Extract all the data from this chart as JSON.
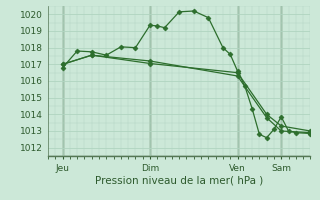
{
  "background_color": "#cce8d8",
  "grid_color": "#b0d4c0",
  "line_color": "#2d6e2d",
  "marker_color": "#2d6e2d",
  "xlabel": "Pression niveau de la mer( hPa )",
  "ylim": [
    1011.5,
    1020.5
  ],
  "yticks": [
    1012,
    1013,
    1014,
    1015,
    1016,
    1017,
    1018,
    1019,
    1020
  ],
  "x_day_labels": [
    {
      "label": "Jeu",
      "x": 6
    },
    {
      "label": "Dim",
      "x": 42
    },
    {
      "label": "Ven",
      "x": 78
    },
    {
      "label": "Sam",
      "x": 96
    }
  ],
  "x_day_vlines_x": [
    6,
    42,
    78,
    96
  ],
  "xlim": [
    0,
    108
  ],
  "series1_x": [
    6,
    12,
    18,
    24,
    30,
    36,
    42,
    45,
    48,
    54,
    60,
    66,
    72,
    75,
    78,
    81,
    84,
    87,
    90,
    93,
    96,
    99,
    102,
    108
  ],
  "series1_y": [
    1016.8,
    1017.8,
    1017.75,
    1017.55,
    1018.05,
    1018.0,
    1019.35,
    1019.3,
    1019.2,
    1020.15,
    1020.2,
    1019.8,
    1018.0,
    1017.6,
    1016.6,
    1015.7,
    1014.35,
    1012.8,
    1012.6,
    1013.1,
    1013.85,
    1013.0,
    1012.9,
    1012.85
  ],
  "series2_x": [
    6,
    18,
    42,
    78,
    90,
    96,
    108
  ],
  "series2_y": [
    1017.0,
    1017.55,
    1017.05,
    1016.5,
    1014.0,
    1013.3,
    1013.0
  ],
  "series3_x": [
    6,
    18,
    42,
    78,
    90,
    96,
    108
  ],
  "series3_y": [
    1017.0,
    1017.55,
    1017.2,
    1016.3,
    1013.8,
    1013.0,
    1012.9
  ]
}
